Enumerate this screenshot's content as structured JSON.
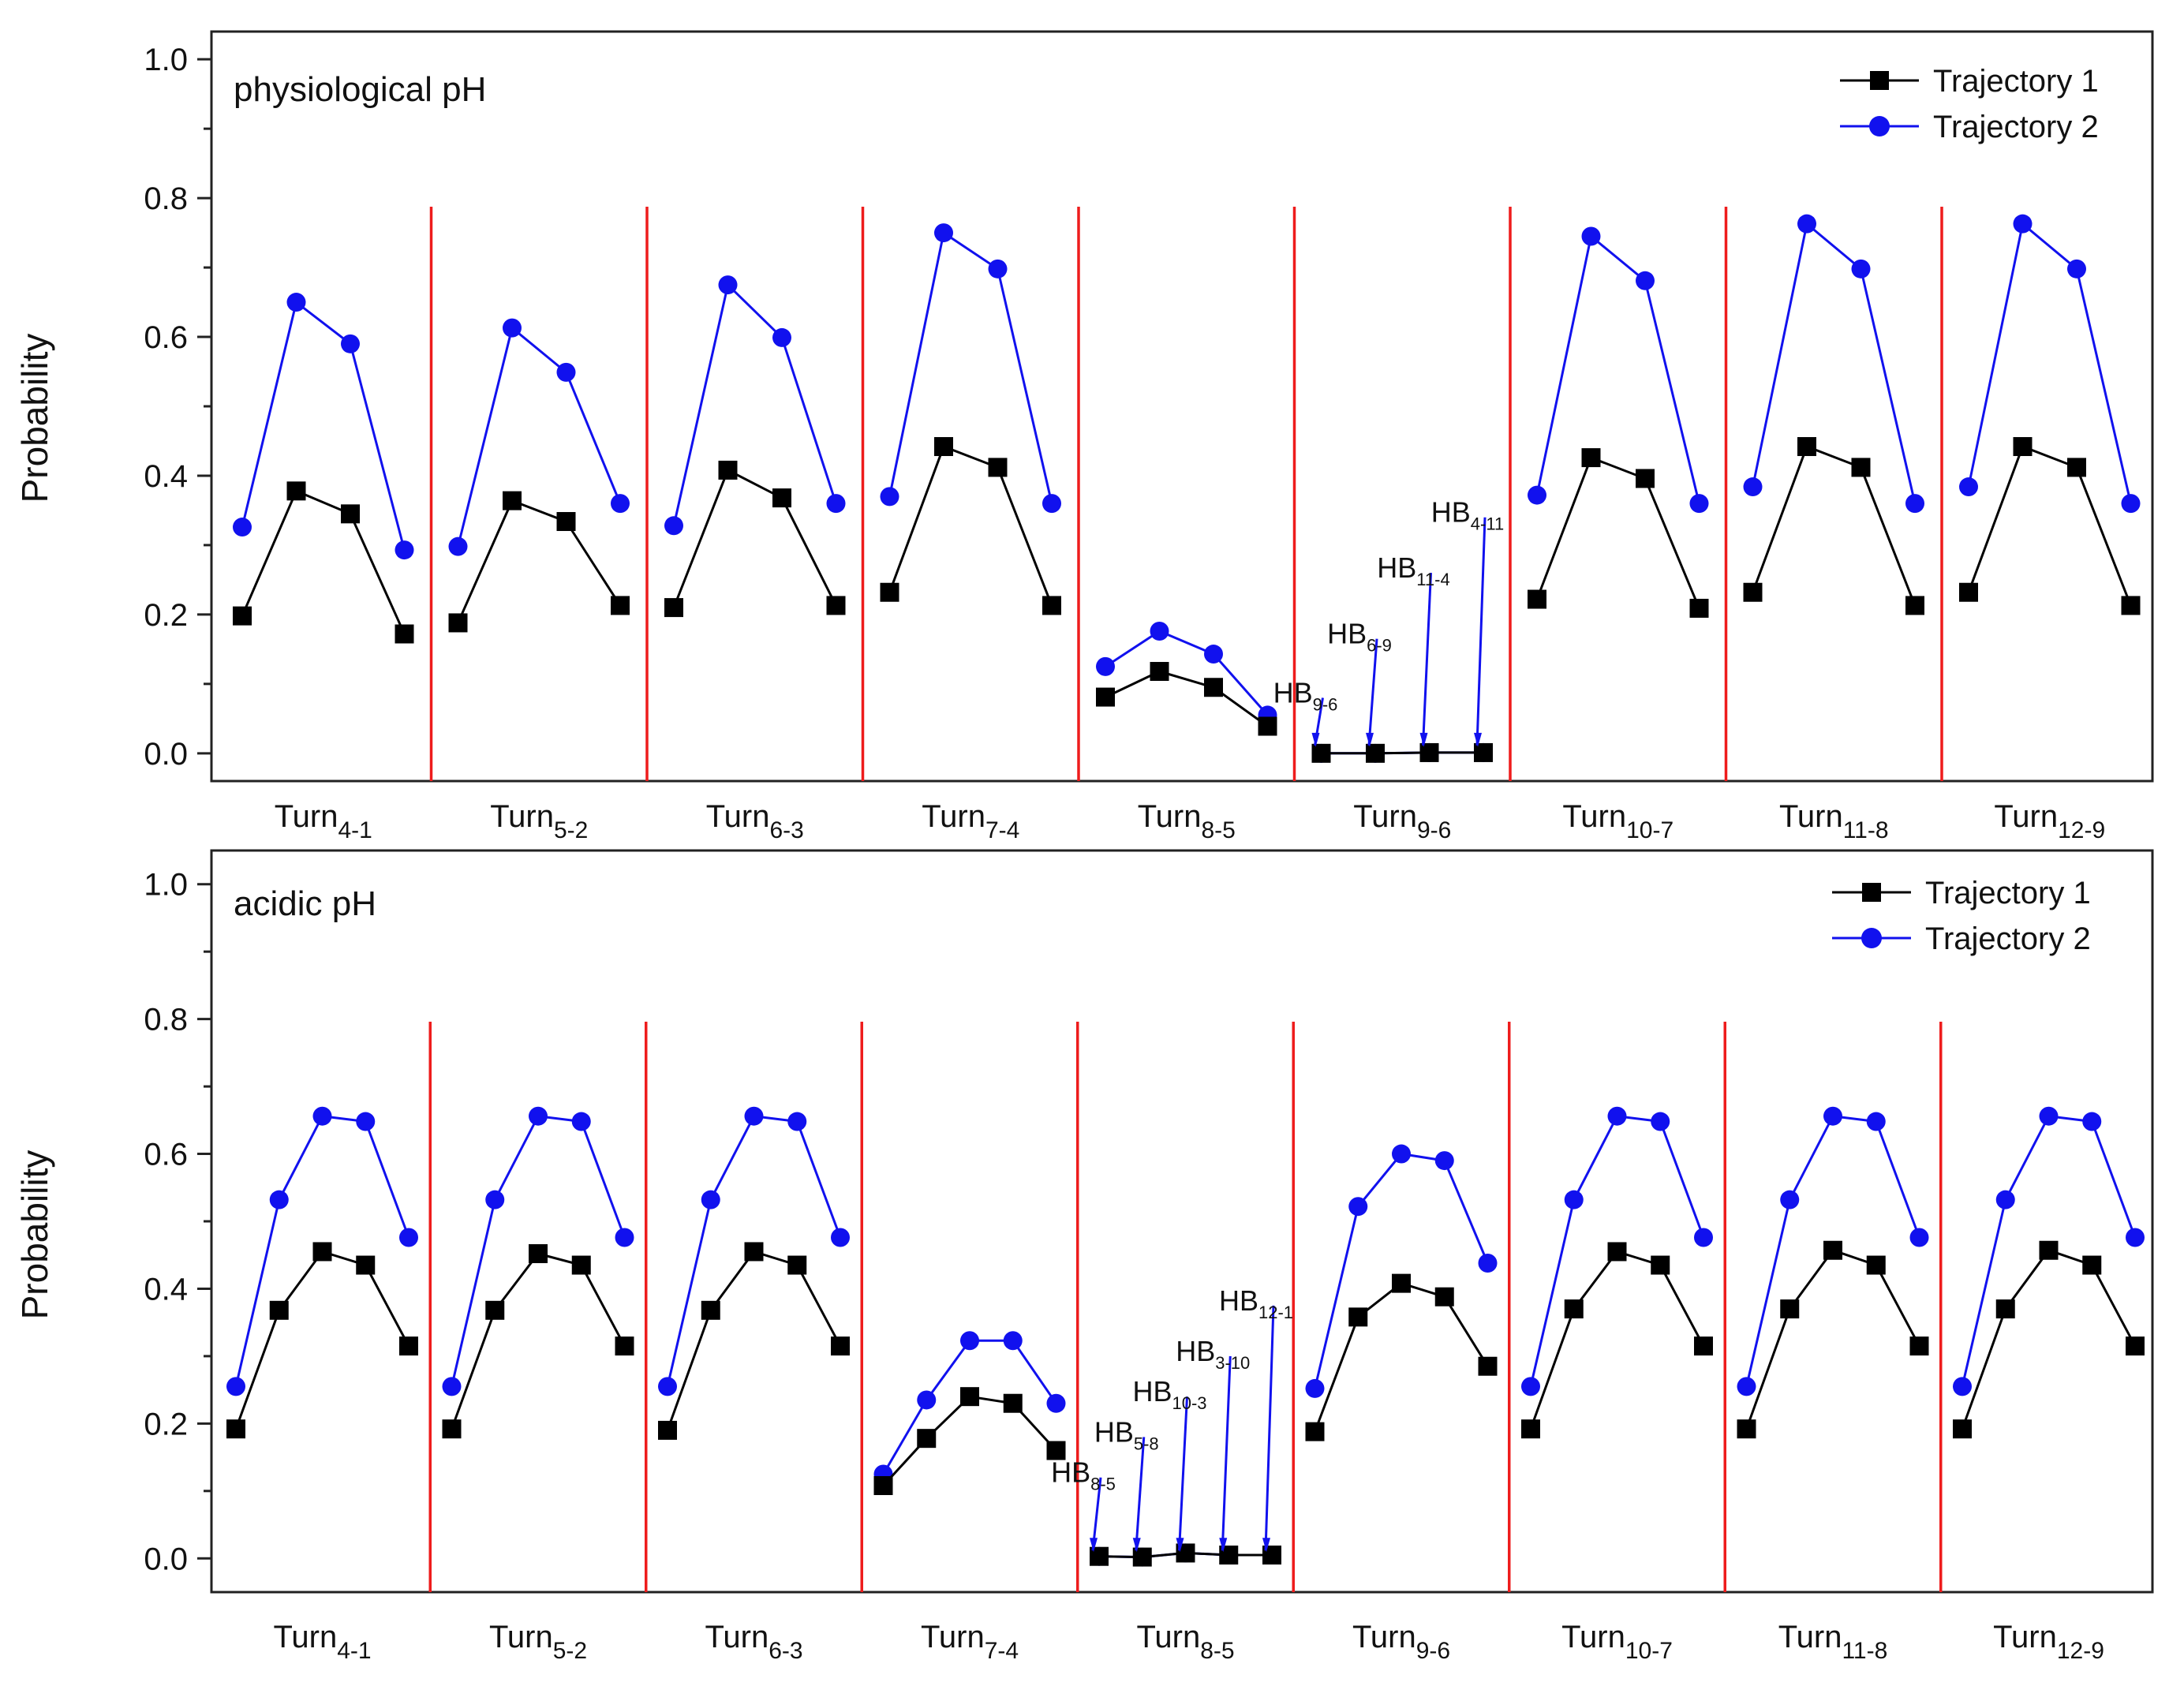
{
  "chart_data": [
    {
      "type": "line",
      "title": "physiological pH",
      "xlabel": "",
      "ylabel": "Probability",
      "ylim": [
        -0.04,
        1.04
      ],
      "yticks": [
        "0.0",
        "0.2",
        "0.4",
        "0.6",
        "0.8",
        "1.0"
      ],
      "legend_position": "top-right",
      "groups": [
        {
          "main": "Turn",
          "sub": "4-1"
        },
        {
          "main": "Turn",
          "sub": "5-2"
        },
        {
          "main": "Turn",
          "sub": "6-3"
        },
        {
          "main": "Turn",
          "sub": "7-4"
        },
        {
          "main": "Turn",
          "sub": "8-5"
        },
        {
          "main": "Turn",
          "sub": "9-6"
        },
        {
          "main": "Turn",
          "sub": "10-7"
        },
        {
          "main": "Turn",
          "sub": "11-8"
        },
        {
          "main": "Turn",
          "sub": "12-9"
        }
      ],
      "points_per_group": 4,
      "series": [
        {
          "name": "Trajectory 1",
          "color": "#000000",
          "marker": "square",
          "values": [
            0.198,
            0.378,
            0.345,
            0.172,
            0.188,
            0.364,
            0.334,
            0.213,
            0.21,
            0.408,
            0.368,
            0.213,
            0.232,
            0.442,
            0.412,
            0.213,
            0.081,
            0.118,
            0.095,
            0.039,
            0.0,
            0.0,
            0.001,
            0.001,
            0.222,
            0.426,
            0.396,
            0.209,
            0.232,
            0.442,
            0.412,
            0.213,
            0.232,
            0.442,
            0.412,
            0.213
          ]
        },
        {
          "name": "Trajectory 2",
          "color": "#1111ee",
          "marker": "circle",
          "values": [
            0.326,
            0.65,
            0.59,
            0.293,
            0.298,
            0.613,
            0.549,
            0.36,
            0.328,
            0.675,
            0.599,
            0.36,
            0.37,
            0.75,
            0.698,
            0.36,
            0.125,
            0.176,
            0.143,
            0.055,
            0.0,
            0.0,
            0.001,
            0.001,
            0.372,
            0.745,
            0.681,
            0.36,
            0.384,
            0.763,
            0.698,
            0.36,
            0.384,
            0.763,
            0.698,
            0.36
          ]
        }
      ],
      "annotations": [
        {
          "main": "HB",
          "sub": "9-6",
          "point_index": 20,
          "peak": 0.08
        },
        {
          "main": "HB",
          "sub": "6-9",
          "point_index": 21,
          "peak": 0.165
        },
        {
          "main": "HB",
          "sub": "11-4",
          "point_index": 22,
          "peak": 0.26
        },
        {
          "main": "HB",
          "sub": "4-11",
          "point_index": 23,
          "peak": 0.34
        }
      ]
    },
    {
      "type": "line",
      "title": "acidic pH",
      "xlabel": "",
      "ylabel": "Probability",
      "ylim": [
        -0.05,
        1.05
      ],
      "yticks": [
        "0.0",
        "0.2",
        "0.4",
        "0.6",
        "0.8",
        "1.0"
      ],
      "legend_position": "top-right",
      "groups": [
        {
          "main": "Turn",
          "sub": "4-1"
        },
        {
          "main": "Turn",
          "sub": "5-2"
        },
        {
          "main": "Turn",
          "sub": "6-3"
        },
        {
          "main": "Turn",
          "sub": "7-4"
        },
        {
          "main": "Turn",
          "sub": "8-5"
        },
        {
          "main": "Turn",
          "sub": "9-6"
        },
        {
          "main": "Turn",
          "sub": "10-7"
        },
        {
          "main": "Turn",
          "sub": "11-8"
        },
        {
          "main": "Turn",
          "sub": "12-9"
        }
      ],
      "points_per_group": 5,
      "series": [
        {
          "name": "Trajectory 1",
          "color": "#000000",
          "marker": "square",
          "values": [
            0.192,
            0.368,
            0.455,
            0.435,
            0.315,
            0.192,
            0.368,
            0.452,
            0.435,
            0.315,
            0.19,
            0.368,
            0.455,
            0.435,
            0.315,
            0.108,
            0.178,
            0.24,
            0.23,
            0.16,
            0.003,
            0.002,
            0.008,
            0.005,
            0.005,
            0.188,
            0.358,
            0.408,
            0.388,
            0.285,
            0.192,
            0.37,
            0.455,
            0.435,
            0.315,
            0.192,
            0.37,
            0.457,
            0.435,
            0.315,
            0.192,
            0.37,
            0.457,
            0.435,
            0.315
          ]
        },
        {
          "name": "Trajectory 2",
          "color": "#1111ee",
          "marker": "circle",
          "values": [
            0.255,
            0.532,
            0.656,
            0.648,
            0.476,
            0.255,
            0.532,
            0.656,
            0.648,
            0.476,
            0.255,
            0.532,
            0.656,
            0.648,
            0.476,
            0.125,
            0.235,
            0.323,
            0.323,
            0.23,
            0.003,
            0.002,
            0.008,
            0.005,
            0.005,
            0.252,
            0.522,
            0.6,
            0.59,
            0.438,
            0.255,
            0.532,
            0.656,
            0.648,
            0.476,
            0.255,
            0.532,
            0.656,
            0.648,
            0.476,
            0.255,
            0.532,
            0.656,
            0.648,
            0.476
          ]
        }
      ],
      "annotations": [
        {
          "main": "HB",
          "sub": "8-5",
          "point_index": 20,
          "peak": 0.12
        },
        {
          "main": "HB",
          "sub": "5-8",
          "point_index": 21,
          "peak": 0.18
        },
        {
          "main": "HB",
          "sub": "10-3",
          "point_index": 22,
          "peak": 0.24
        },
        {
          "main": "HB",
          "sub": "3-10",
          "point_index": 23,
          "peak": 0.3
        },
        {
          "main": "HB",
          "sub": "12-1",
          "point_index": 24,
          "peak": 0.375
        }
      ]
    }
  ]
}
